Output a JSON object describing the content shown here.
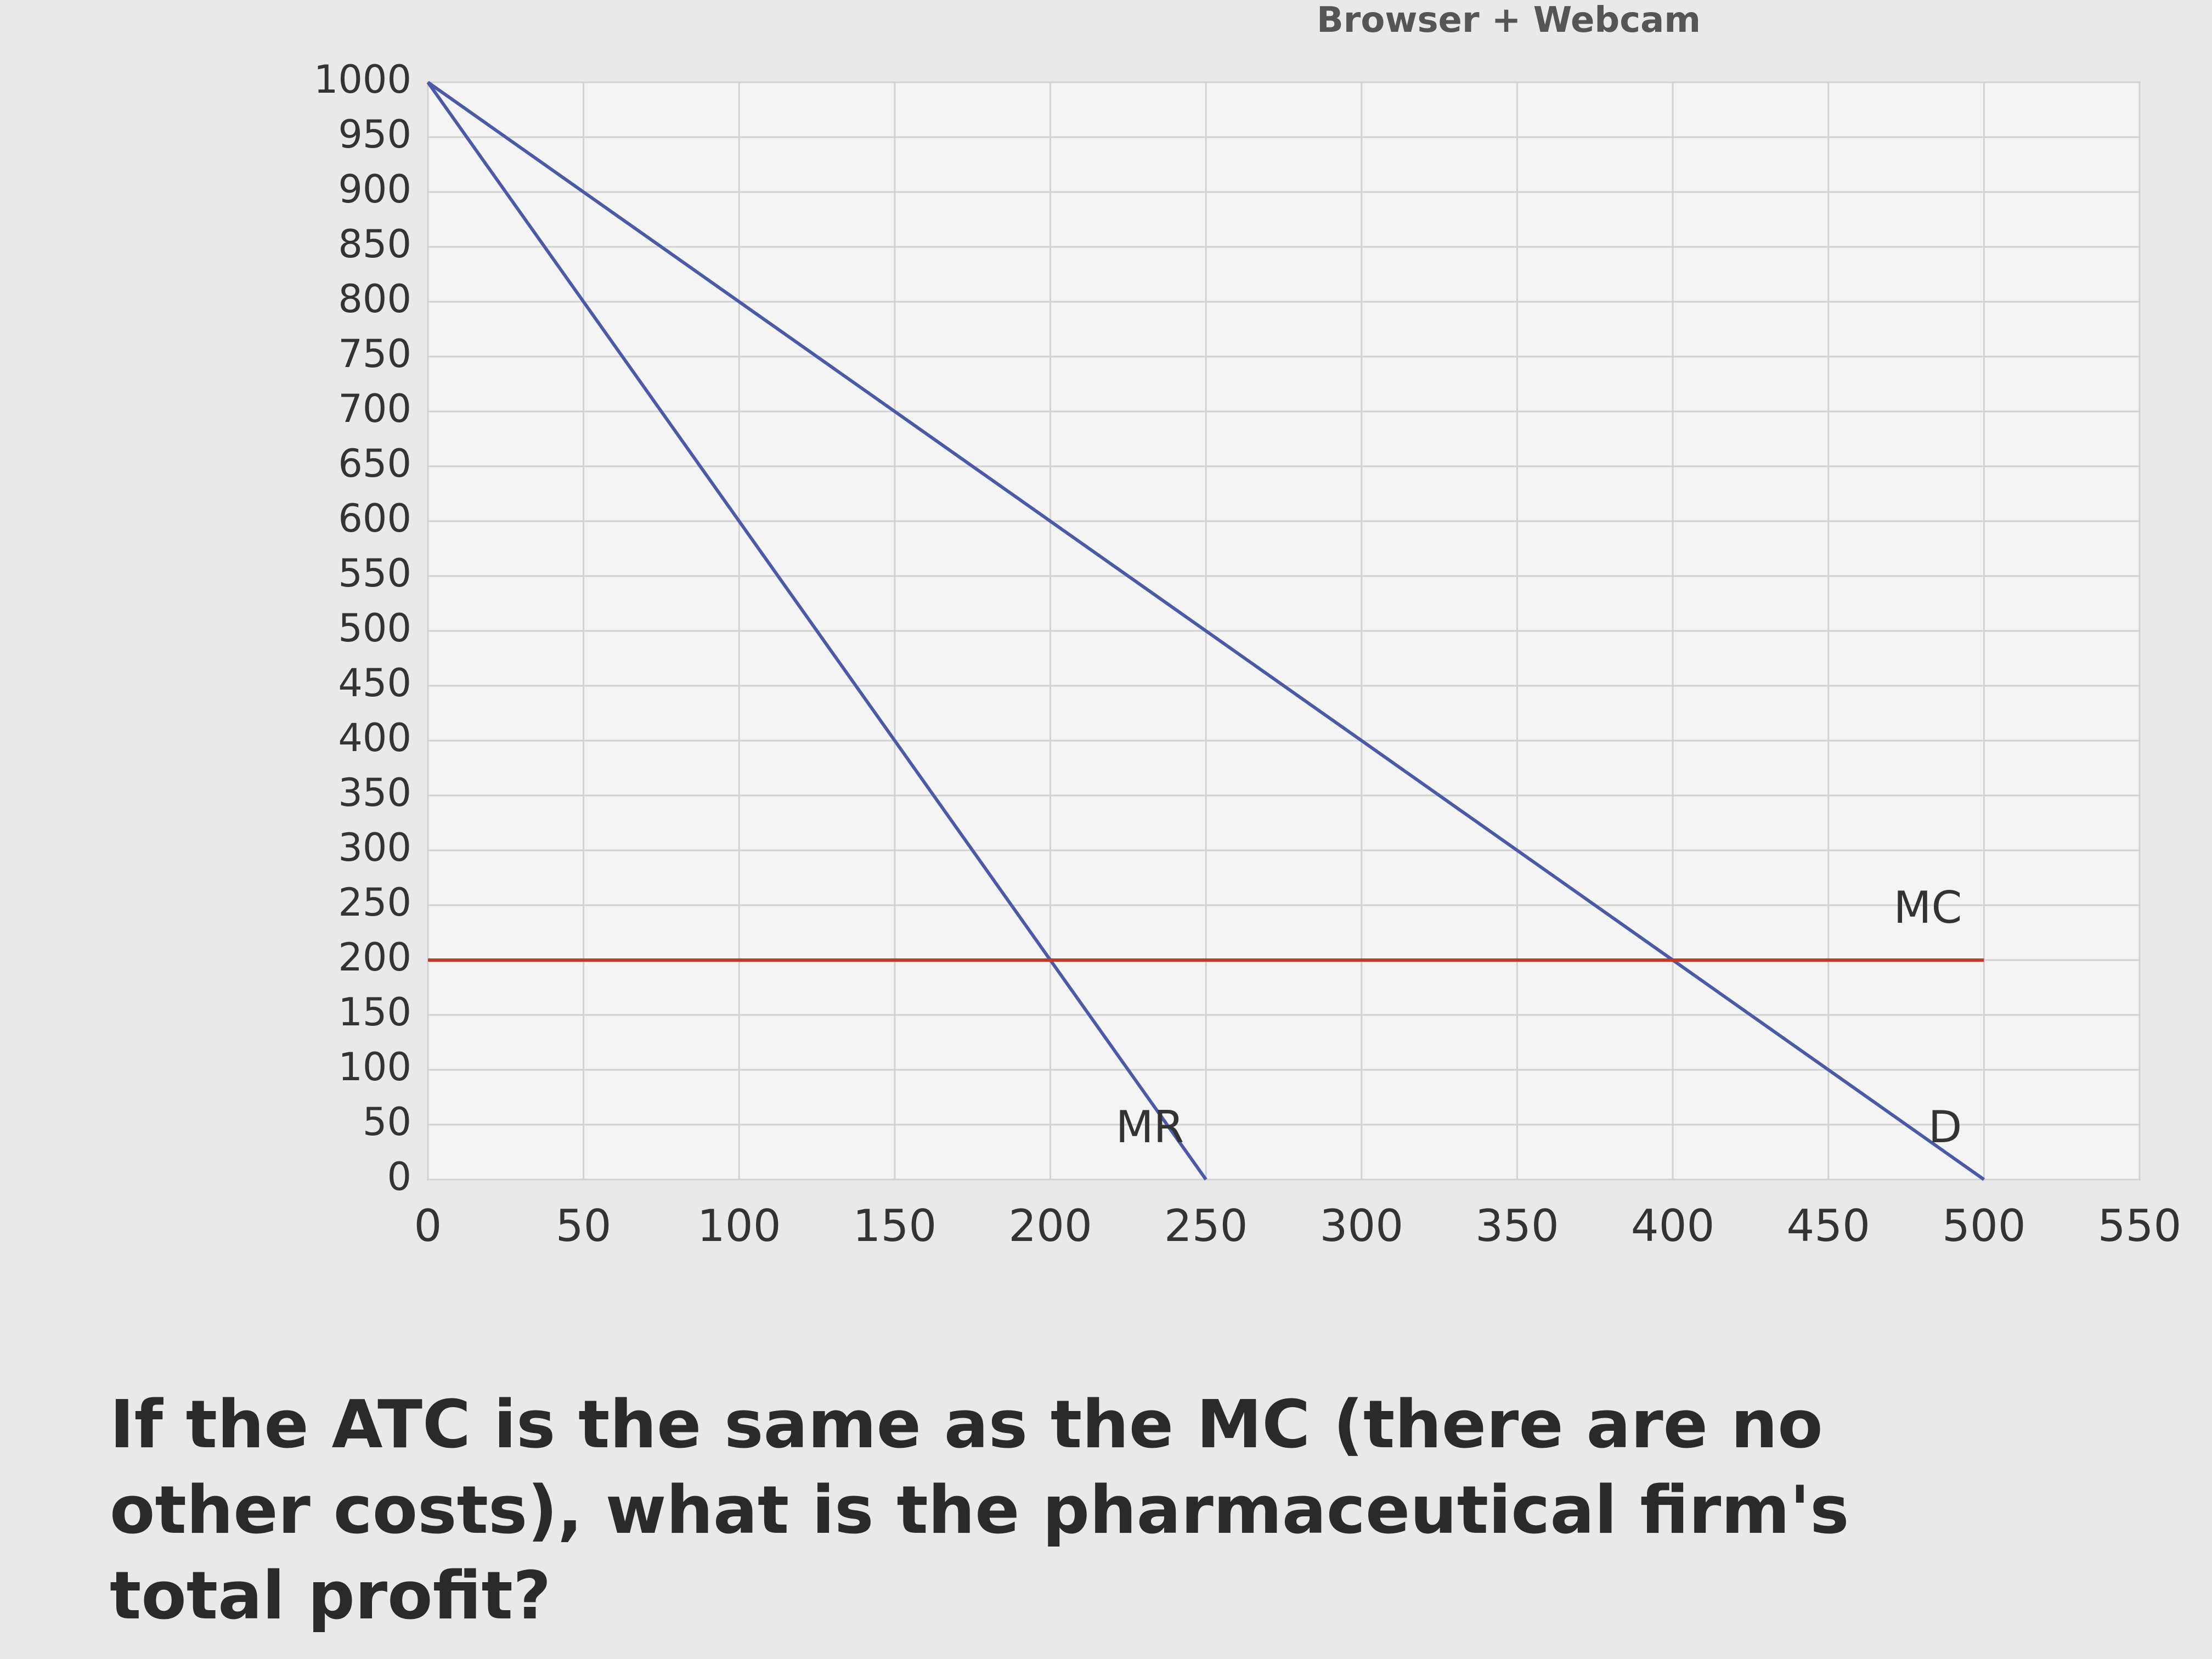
{
  "window_title": "Browser + Webcam",
  "chart_data": {
    "type": "line",
    "series": [
      {
        "name": "D",
        "color": "#4a5aa6",
        "x": [
          0,
          500
        ],
        "values": [
          1000,
          0
        ]
      },
      {
        "name": "MR",
        "color": "#4a5aa6",
        "x": [
          0,
          250
        ],
        "values": [
          1000,
          0
        ]
      },
      {
        "name": "MC",
        "color": "#c0392b",
        "x": [
          0,
          500
        ],
        "values": [
          200,
          200
        ]
      }
    ],
    "xlim": [
      0,
      550
    ],
    "xticks": [
      0,
      50,
      100,
      150,
      200,
      250,
      300,
      350,
      400,
      450,
      500,
      550
    ],
    "ylim": [
      0,
      1000
    ],
    "yticks": [
      0,
      50,
      100,
      150,
      200,
      250,
      300,
      350,
      400,
      450,
      500,
      550,
      600,
      650,
      700,
      750,
      800,
      850,
      900,
      950,
      1000
    ],
    "grid": true
  },
  "question": "If the ATC is the same as the MC (there are no other costs), what is the pharmaceutical firm's total profit?"
}
